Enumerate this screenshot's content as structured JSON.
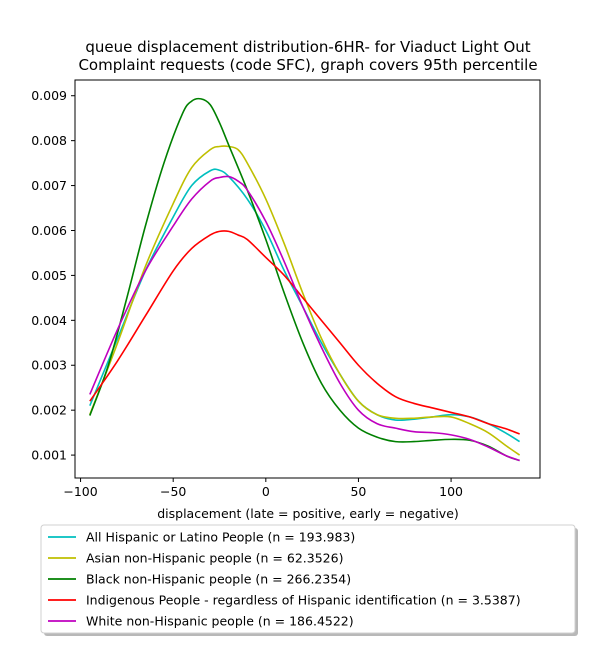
{
  "chart_data": {
    "type": "line",
    "title": [
      "queue displacement distribution-6HR-  for Viaduct Light Out",
      "Complaint  requests (code SFC), graph covers 95th percentile"
    ],
    "xlabel": "displacement (late = positive, early = negative)",
    "ylabel": "",
    "xlim": [
      -103,
      148
    ],
    "ylim": [
      0.00049,
      0.00935
    ],
    "xticks": [
      -100,
      -50,
      0,
      50,
      100
    ],
    "xtick_labels": [
      "−100",
      "−50",
      "0",
      "50",
      "100"
    ],
    "yticks": [
      0.001,
      0.002,
      0.003,
      0.004,
      0.005,
      0.006,
      0.007,
      0.008,
      0.009
    ],
    "ytick_labels": [
      "0.001",
      "0.002",
      "0.003",
      "0.004",
      "0.005",
      "0.006",
      "0.007",
      "0.008",
      "0.009"
    ],
    "grid": false,
    "legend_position": "bottom",
    "series": [
      {
        "name": "All Hispanic or Latino People (n = 193.983)",
        "color": "#00bfbf",
        "x": [
          -95,
          -80,
          -65,
          -50,
          -40,
          -30,
          -25,
          -20,
          -10,
          0,
          10,
          20,
          30,
          40,
          50,
          60,
          70,
          80,
          90,
          100,
          110,
          120,
          130,
          137
        ],
        "y": [
          0.0021,
          0.0036,
          0.0051,
          0.0063,
          0.007,
          0.00733,
          0.00734,
          0.0072,
          0.0067,
          0.006,
          0.0051,
          0.0043,
          0.0035,
          0.0028,
          0.0022,
          0.0019,
          0.00178,
          0.0018,
          0.00185,
          0.0019,
          0.00185,
          0.0017,
          0.00148,
          0.0013
        ]
      },
      {
        "name": "Asian non-Hispanic people (n = 62.3526)",
        "color": "#bfbf00",
        "x": [
          -95,
          -80,
          -65,
          -50,
          -40,
          -30,
          -25,
          -20,
          -15,
          -10,
          0,
          10,
          20,
          30,
          40,
          50,
          60,
          70,
          80,
          90,
          100,
          110,
          120,
          130,
          137
        ],
        "y": [
          0.0019,
          0.0035,
          0.0052,
          0.0066,
          0.0074,
          0.0078,
          0.00787,
          0.00787,
          0.0078,
          0.0075,
          0.0067,
          0.0057,
          0.0046,
          0.0036,
          0.0028,
          0.0022,
          0.0019,
          0.00182,
          0.00182,
          0.00185,
          0.00185,
          0.0017,
          0.0015,
          0.0012,
          0.001
        ]
      },
      {
        "name": "Black non-Hispanic people (n = 266.2354)",
        "color": "#008000",
        "x": [
          -95,
          -85,
          -75,
          -65,
          -55,
          -45,
          -40,
          -35,
          -30,
          -25,
          -20,
          -10,
          0,
          10,
          20,
          30,
          40,
          50,
          60,
          70,
          80,
          90,
          100,
          110,
          120,
          130,
          137
        ],
        "y": [
          0.00188,
          0.003,
          0.0045,
          0.0061,
          0.0075,
          0.0086,
          0.00888,
          0.00893,
          0.0088,
          0.0084,
          0.0079,
          0.0069,
          0.0058,
          0.0046,
          0.0035,
          0.0026,
          0.002,
          0.0016,
          0.0014,
          0.0013,
          0.0013,
          0.00133,
          0.00135,
          0.00133,
          0.0012,
          0.00098,
          0.00088
        ]
      },
      {
        "name": "Indigenous People - regardless of Hispanic identification (n = 3.5387)",
        "color": "#ff0000",
        "x": [
          -95,
          -80,
          -65,
          -50,
          -40,
          -30,
          -25,
          -20,
          -15,
          -10,
          0,
          10,
          20,
          30,
          40,
          50,
          60,
          70,
          80,
          90,
          100,
          110,
          120,
          130,
          137
        ],
        "y": [
          0.0022,
          0.0031,
          0.0041,
          0.0051,
          0.0056,
          0.0059,
          0.00598,
          0.00598,
          0.0059,
          0.0058,
          0.0054,
          0.005,
          0.0045,
          0.004,
          0.0035,
          0.003,
          0.0026,
          0.0023,
          0.00215,
          0.00205,
          0.00195,
          0.00185,
          0.0017,
          0.00158,
          0.00147
        ]
      },
      {
        "name": "White non-Hispanic people (n = 186.4522)",
        "color": "#bf00bf",
        "x": [
          -95,
          -80,
          -65,
          -50,
          -40,
          -30,
          -25,
          -20,
          -15,
          -10,
          0,
          10,
          20,
          30,
          40,
          50,
          60,
          70,
          80,
          90,
          100,
          110,
          120,
          130,
          137
        ],
        "y": [
          0.00235,
          0.0038,
          0.0051,
          0.0061,
          0.0067,
          0.0071,
          0.00718,
          0.0072,
          0.0071,
          0.0069,
          0.0062,
          0.0053,
          0.0043,
          0.0034,
          0.0026,
          0.002,
          0.0017,
          0.0016,
          0.00152,
          0.0015,
          0.00145,
          0.00135,
          0.00118,
          0.00098,
          0.00088
        ]
      }
    ]
  }
}
